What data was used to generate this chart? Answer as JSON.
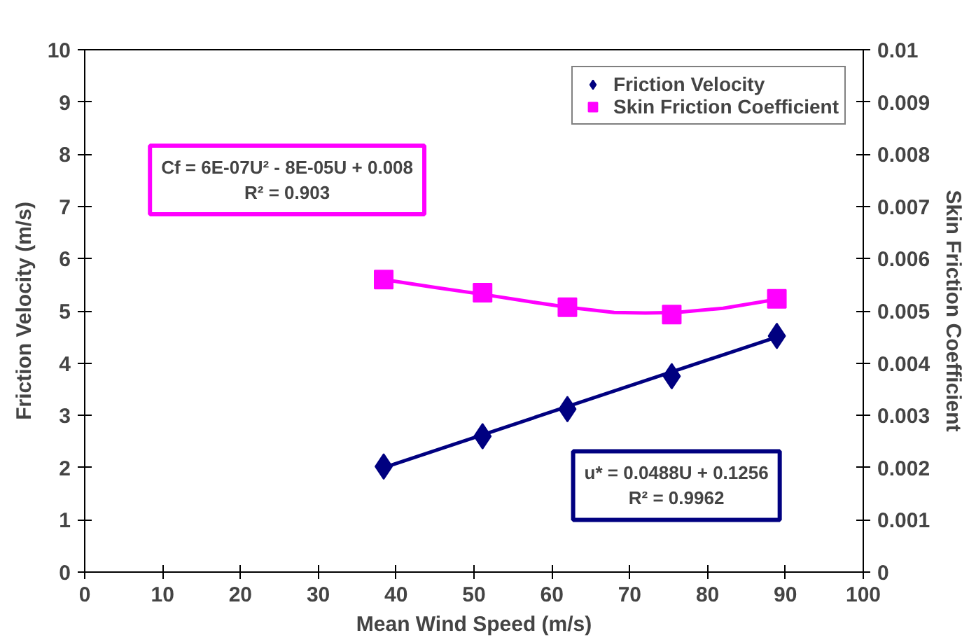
{
  "chart_data": {
    "type": "scatter",
    "xlabel": "Mean Wind Speed (m/s)",
    "ylabel": "Friction Velocity (m/s)",
    "y2label": "Skin Friction Coefficient",
    "xlim": [
      0,
      100
    ],
    "xticks": [
      0,
      10,
      20,
      30,
      40,
      50,
      60,
      70,
      80,
      90,
      100
    ],
    "ylim": [
      0,
      10
    ],
    "yticks": [
      0,
      1,
      2,
      3,
      4,
      5,
      6,
      7,
      8,
      9,
      10
    ],
    "y2lim": [
      0,
      0.01
    ],
    "y2ticks": [
      0,
      0.001,
      0.002,
      0.003,
      0.004,
      0.005,
      0.006,
      0.007,
      0.008,
      0.009,
      0.01
    ],
    "grid": false,
    "legend": "top right",
    "series": [
      {
        "name": "Friction Velocity",
        "marker": "diamond",
        "color": "#000080",
        "x": [
          38.4,
          51.1,
          62.0,
          75.4,
          88.9
        ],
        "values": [
          2.02,
          2.6,
          3.12,
          3.75,
          4.52
        ]
      },
      {
        "name": "Skin Friction Coefficient",
        "marker": "square",
        "axis": "y2",
        "color": "#ff00ff",
        "x": [
          38.4,
          51.1,
          62.0,
          75.4,
          88.9
        ],
        "values": [
          0.0056,
          0.00535,
          0.00507,
          0.00493,
          0.00523
        ]
      },
      {
        "type": "line",
        "color": "#000080",
        "x": [
          38.4,
          88.9
        ],
        "values": [
          2.0,
          4.5
        ]
      },
      {
        "type": "line",
        "axis": "y2",
        "color": "#ff00ff",
        "x": [
          38.4,
          45,
          51,
          57,
          62,
          68,
          72,
          76,
          82,
          88.9
        ],
        "values": [
          0.0056,
          0.00545,
          0.00532,
          0.00518,
          0.00507,
          0.00497,
          0.00496,
          0.00497,
          0.00505,
          0.00522
        ]
      }
    ],
    "annotations": [
      "Cf = 6E-07U² - 8E-05U + 0.008\nR² = 0.903",
      "u* = 0.0488U + 0.1256\nR² = 0.9962"
    ]
  }
}
